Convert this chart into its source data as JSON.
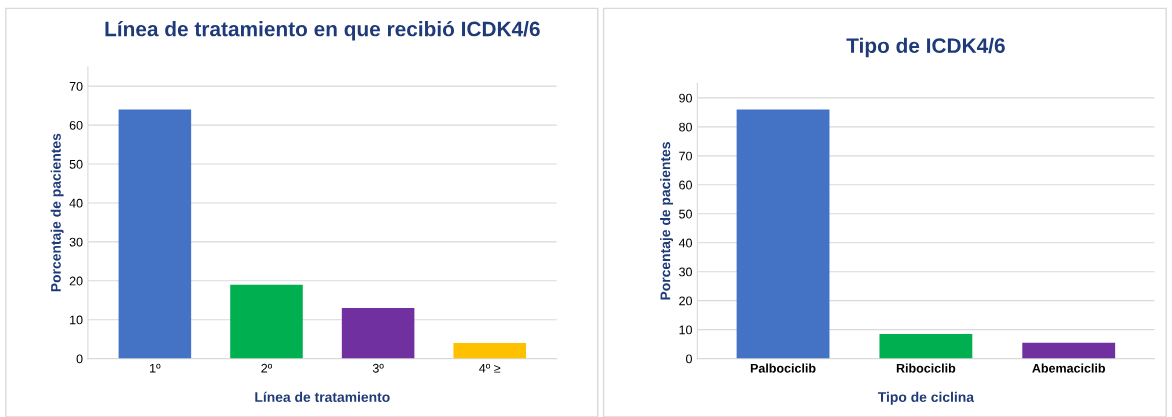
{
  "chart_data": [
    {
      "type": "bar",
      "title": "Línea de tratamiento en que recibió ICDK4/6",
      "xlabel": "Línea de tratamiento",
      "ylabel": "Porcentaje de pacientes",
      "categories": [
        "1º",
        "2º",
        "3º",
        "4º ≥"
      ],
      "values": [
        64,
        19,
        13,
        4
      ],
      "colors": [
        "#4472c4",
        "#00b050",
        "#7030a0",
        "#ffc000"
      ],
      "ylim": [
        0,
        75
      ],
      "yticks": [
        0,
        10,
        20,
        30,
        40,
        50,
        60,
        70
      ],
      "grid": "y"
    },
    {
      "type": "bar",
      "title": "Tipo de ICDK4/6",
      "xlabel": "Tipo de ciclina",
      "ylabel": "Porcentaje de pacientes",
      "categories": [
        "Palbociclib",
        "Ribociclib",
        "Abemaciclib"
      ],
      "values": [
        86,
        8.5,
        5.5
      ],
      "colors": [
        "#4472c4",
        "#00b050",
        "#7030a0"
      ],
      "ylim": [
        0,
        95
      ],
      "yticks": [
        0,
        10,
        20,
        30,
        40,
        50,
        60,
        70,
        80,
        90
      ],
      "grid": "y"
    }
  ]
}
